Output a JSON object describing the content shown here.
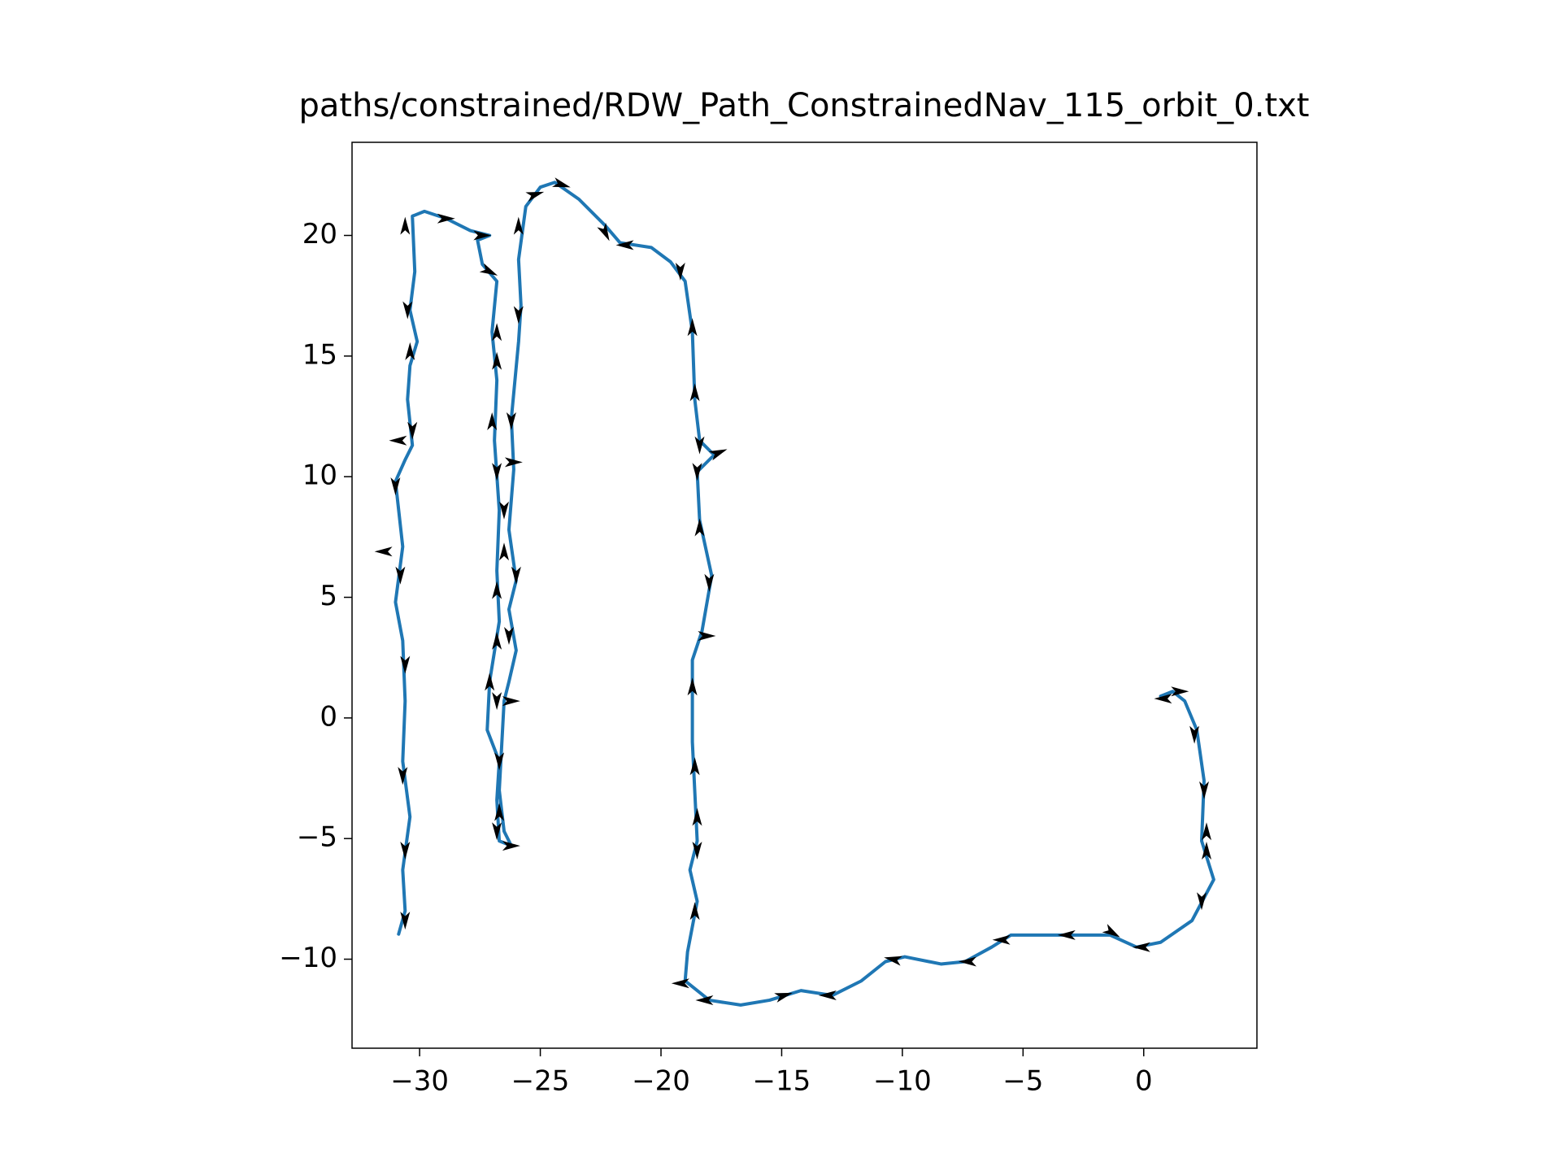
{
  "chart_data": {
    "type": "line",
    "title": "paths/constrained/RDW_Path_ConstrainedNav_115_orbit_0.txt",
    "xlim": [
      -32.8,
      4.69
    ],
    "ylim": [
      -13.69,
      23.86
    ],
    "xticks": [
      {
        "value": -30,
        "label": "−30"
      },
      {
        "value": -25,
        "label": "−25"
      },
      {
        "value": -20,
        "label": "−20"
      },
      {
        "value": -15,
        "label": "−15"
      },
      {
        "value": -10,
        "label": "−10"
      },
      {
        "value": -5,
        "label": "−5"
      },
      0
    ],
    "yticks": [
      {
        "value": -10,
        "label": "−10"
      },
      {
        "value": -5,
        "label": "−5"
      },
      0,
      5,
      10,
      15,
      20
    ],
    "x": [
      -30.87,
      -30.6,
      -30.7,
      -30.4,
      -30.7,
      -30.6,
      -30.7,
      -31.0,
      -30.7,
      -31.0,
      -30.6,
      -30.3,
      -30.5,
      -30.4,
      -30.1,
      -30.4,
      -30.2,
      -30.3,
      -29.8,
      -28.9,
      -27.9,
      -27.1,
      -27.6,
      -27.4,
      -26.8,
      -27.0,
      -26.8,
      -26.9,
      -26.7,
      -26.8,
      -26.7,
      -27.1,
      -27.2,
      -26.7,
      -26.8,
      -26.7,
      -26.2,
      -26.5,
      -26.7,
      -26.5,
      -26.3,
      -26.0,
      -26.3,
      -26.0,
      -26.3,
      -26.1,
      -26.2,
      -25.9,
      -25.8,
      -25.9,
      -25.6,
      -25.0,
      -24.4,
      -23.4,
      -22.3,
      -21.7,
      -20.4,
      -19.6,
      -19.0,
      -18.7,
      -18.6,
      -18.4,
      -17.8,
      -18.5,
      -18.4,
      -17.9,
      -18.3,
      -18.7,
      -18.7,
      -18.5,
      -18.8,
      -18.5,
      -18.9,
      -19.0,
      -18.0,
      -16.7,
      -15.5,
      -14.2,
      -12.9,
      -11.7,
      -10.7,
      -9.9,
      -8.4,
      -7.4,
      -6.3,
      -5.5,
      -3.4,
      -1.4,
      -0.3,
      0.7,
      2.0,
      2.9,
      2.4,
      2.5,
      2.2,
      1.7,
      1.2,
      0.7
    ],
    "series": [
      {
        "color": "#1f77b4",
        "values": [
          -8.96,
          -8.0,
          -6.3,
          -4.1,
          -1.8,
          0.7,
          3.2,
          4.8,
          7.1,
          9.8,
          10.7,
          11.3,
          13.2,
          14.6,
          15.6,
          16.9,
          18.5,
          20.8,
          21.0,
          20.7,
          20.2,
          20.0,
          19.8,
          18.8,
          18.1,
          16.0,
          14.0,
          11.5,
          8.6,
          6.1,
          4.0,
          1.5,
          -0.5,
          -1.8,
          -3.4,
          -5.1,
          -5.3,
          -4.7,
          -3.0,
          0.7,
          1.5,
          2.8,
          4.5,
          5.7,
          7.8,
          10.3,
          12.4,
          15.6,
          17.1,
          19.0,
          21.2,
          22.0,
          22.2,
          21.5,
          20.4,
          19.7,
          19.5,
          18.9,
          18.1,
          16.0,
          13.2,
          11.5,
          10.9,
          10.2,
          8.2,
          5.9,
          3.6,
          2.4,
          -1.0,
          -5.1,
          -6.3,
          -7.6,
          -9.7,
          -10.9,
          -11.7,
          -11.9,
          -11.7,
          -11.3,
          -11.5,
          -10.9,
          -10.1,
          -9.9,
          -10.2,
          -10.1,
          -9.5,
          -9.0,
          -9.0,
          -9.0,
          -9.5,
          -9.3,
          -8.4,
          -6.7,
          -5.1,
          -2.6,
          -0.5,
          0.7,
          1.1,
          0.9
        ]
      }
    ],
    "quiver": {
      "color": "#000000",
      "x": [
        -30.6,
        -30.6,
        -30.7,
        -30.6,
        -30.8,
        -31.5,
        -31.0,
        -30.9,
        -30.3,
        -30.4,
        -30.5,
        -30.6,
        -28.9,
        -27.4,
        -27.1,
        -26.8,
        -26.8,
        -27.0,
        -26.8,
        -26.1,
        -26.5,
        -26.5,
        -26.0,
        -26.8,
        -26.3,
        -26.8,
        -27.1,
        -26.2,
        -26.8,
        -26.7,
        -26.7,
        -26.8,
        -26.2,
        -25.9,
        -25.9,
        -26.2,
        -25.2,
        -24.1,
        -22.3,
        -21.5,
        -19.2,
        -18.7,
        -18.6,
        -17.6,
        -18.4,
        -18.5,
        -18.4,
        -18.0,
        -18.1,
        -18.7,
        -18.6,
        -18.5,
        -18.5,
        -18.6,
        -19.2,
        -18.2,
        -14.9,
        -13.1,
        -10.4,
        -7.3,
        -5.9,
        -3.2,
        -1.3,
        -0.1,
        2.4,
        2.6,
        2.6,
        2.5,
        2.1,
        1.5,
        0.8
      ],
      "y": [
        -8.4,
        -5.5,
        -2.4,
        2.2,
        5.9,
        6.9,
        9.6,
        11.5,
        11.9,
        15.2,
        16.9,
        20.4,
        20.7,
        20.0,
        18.5,
        16.0,
        14.8,
        12.3,
        10.2,
        10.6,
        8.6,
        6.9,
        5.9,
        5.3,
        3.4,
        3.2,
        1.5,
        0.7,
        0.7,
        -1.8,
        -3.9,
        -4.7,
        -5.3,
        20.4,
        16.7,
        12.3,
        21.7,
        22.1,
        20.1,
        19.6,
        18.5,
        16.2,
        13.5,
        11.0,
        11.3,
        10.2,
        7.9,
        5.6,
        3.4,
        1.3,
        -2.0,
        -4.1,
        -5.5,
        -8.0,
        -11.0,
        -11.7,
        -11.5,
        -11.5,
        -10.0,
        -10.1,
        -9.2,
        -9.0,
        -8.9,
        -9.5,
        -7.6,
        -5.5,
        -4.7,
        -3.0,
        -0.7,
        1.1,
        0.8
      ],
      "u": [
        0,
        0,
        0,
        0,
        0,
        -1,
        0,
        -1,
        0,
        0,
        0,
        0,
        1,
        1,
        1,
        0,
        0,
        0,
        0,
        1,
        0,
        0,
        0,
        0,
        0,
        0,
        0,
        1,
        0,
        0,
        0,
        0,
        1,
        0,
        0,
        0,
        1,
        1,
        0.5,
        -1,
        0,
        0,
        0,
        1,
        0,
        0,
        0,
        0,
        1,
        0,
        0,
        0,
        0,
        0,
        -1,
        -1,
        1,
        -1,
        -1,
        -1,
        -1,
        -1,
        1,
        -1,
        0,
        0,
        0,
        0,
        0,
        1,
        -1
      ],
      "v": [
        -1,
        -1,
        -1,
        -1,
        -1,
        0,
        -1,
        0,
        -1,
        1,
        -1,
        1,
        0,
        0,
        -0.5,
        1,
        1,
        1,
        -1,
        0,
        -1,
        1,
        -1,
        1,
        -1,
        1,
        1,
        0,
        -1,
        -1,
        1,
        -1,
        0,
        1,
        -1,
        -1,
        0.3,
        -0.3,
        -1,
        0,
        -1,
        1,
        1,
        0.4,
        -1,
        -1,
        1,
        -1,
        0,
        1,
        1,
        1,
        -1,
        1,
        0,
        0,
        0.3,
        0,
        0.2,
        0,
        0,
        0,
        -0.6,
        0,
        -1,
        1,
        1,
        -1,
        -1,
        0,
        0
      ]
    }
  }
}
